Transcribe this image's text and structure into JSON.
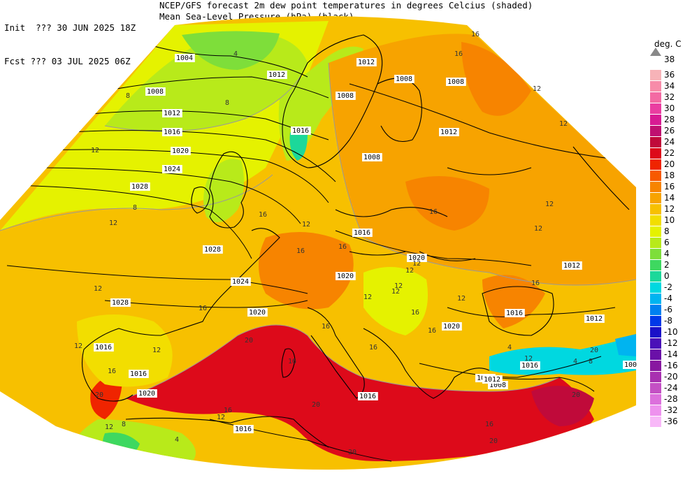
{
  "header": {
    "init_line": "Init  ??? 30 JUN 2025 18Z",
    "fcst_line": "Fcst ??? 03 JUL 2025 06Z",
    "title_line1": "NCEP/GFS forecast 2m dew point temperatures in degrees Celcius (shaded)",
    "title_line2": "Mean Sea-Level Pressure (hPa) (black)."
  },
  "legend": {
    "unit": "deg. C",
    "top_label": "38",
    "entries": [
      {
        "label": "36",
        "color": "#f7b3b8"
      },
      {
        "label": "34",
        "color": "#f78ca9"
      },
      {
        "label": "32",
        "color": "#f36aa3"
      },
      {
        "label": "30",
        "color": "#ea3ea1"
      },
      {
        "label": "28",
        "color": "#d81b93"
      },
      {
        "label": "26",
        "color": "#bf1070"
      },
      {
        "label": "24",
        "color": "#c00a3a"
      },
      {
        "label": "22",
        "color": "#dd0a1a"
      },
      {
        "label": "20",
        "color": "#ef2400"
      },
      {
        "label": "18",
        "color": "#f75a00"
      },
      {
        "label": "16",
        "color": "#f78400"
      },
      {
        "label": "14",
        "color": "#f7a300"
      },
      {
        "label": "12",
        "color": "#f7c000"
      },
      {
        "label": "10",
        "color": "#f2de00"
      },
      {
        "label": "8",
        "color": "#e5f200"
      },
      {
        "label": "6",
        "color": "#b8ea1a"
      },
      {
        "label": "4",
        "color": "#7ede3a"
      },
      {
        "label": "2",
        "color": "#3ed860"
      },
      {
        "label": "0",
        "color": "#1cd89a"
      },
      {
        "label": "-2",
        "color": "#00d8e0"
      },
      {
        "label": "-4",
        "color": "#00b4f0"
      },
      {
        "label": "-6",
        "color": "#0080f0"
      },
      {
        "label": "-8",
        "color": "#0038e8"
      },
      {
        "label": "-10",
        "color": "#1a10c8"
      },
      {
        "label": "-12",
        "color": "#4a10b8"
      },
      {
        "label": "-14",
        "color": "#6a10a8"
      },
      {
        "label": "-16",
        "color": "#8818a0"
      },
      {
        "label": "-20",
        "color": "#a830b0"
      },
      {
        "label": "-24",
        "color": "#c450c4"
      },
      {
        "label": "-28",
        "color": "#dc70dc"
      },
      {
        "label": "-32",
        "color": "#ee92ee"
      },
      {
        "label": "-36",
        "color": "#f8b8f8"
      }
    ]
  },
  "isobar_labels": [
    "1004",
    "1008",
    "1012",
    "1016",
    "1020",
    "1024",
    "1028",
    "1012",
    "1008",
    "1008",
    "1012",
    "1012",
    "1008",
    "1016",
    "1020",
    "1020",
    "1016",
    "1012",
    "1012",
    "1016",
    "1016",
    "1008",
    "1016",
    "1016",
    "1020",
    "1024",
    "1028",
    "1028",
    "1020",
    "1016",
    "1012",
    "1020",
    "1012",
    "1008",
    "1016",
    "100"
  ],
  "dewpoint_labels": [
    "4",
    "8",
    "8",
    "12",
    "12",
    "16",
    "12",
    "12",
    "16",
    "16",
    "12",
    "16",
    "16",
    "12",
    "12",
    "16",
    "12",
    "12",
    "16",
    "16",
    "16",
    "20",
    "20",
    "16",
    "16",
    "12",
    "12",
    "4",
    "16",
    "20",
    "20",
    "16",
    "20",
    "12",
    "4",
    "12",
    "12",
    "8",
    "4",
    "12",
    "16",
    "16",
    "12",
    "12",
    "20",
    "20",
    "16",
    "12",
    "8",
    "8",
    "12"
  ],
  "colors": {
    "land_border": "#000000",
    "isobar": "#000000",
    "dewpoint_contour": "#9a9a9a"
  }
}
